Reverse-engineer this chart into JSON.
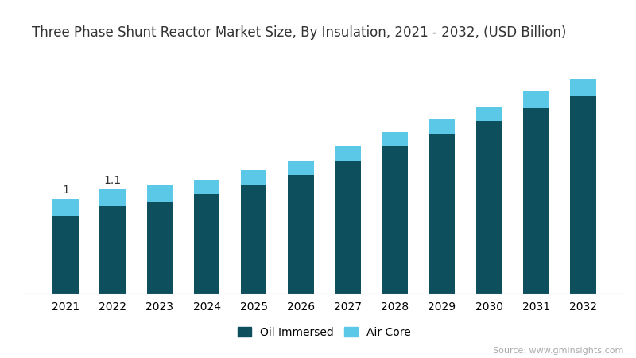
{
  "title": "Three Phase Shunt Reactor Market Size, By Insulation, 2021 - 2032, (USD Billion)",
  "years": [
    2021,
    2022,
    2023,
    2024,
    2025,
    2026,
    2027,
    2028,
    2029,
    2030,
    2031,
    2032
  ],
  "oil_immersed": [
    0.82,
    0.92,
    0.96,
    1.05,
    1.15,
    1.25,
    1.4,
    1.55,
    1.68,
    1.82,
    1.95,
    2.08
  ],
  "air_core": [
    0.18,
    0.18,
    0.19,
    0.15,
    0.15,
    0.15,
    0.15,
    0.15,
    0.15,
    0.15,
    0.18,
    0.18
  ],
  "oil_color": "#0d4f5c",
  "air_color": "#5bc8e8",
  "bg_color": "#ffffff",
  "title_color": "#333333",
  "annotations": [
    {
      "year_idx": 0,
      "text": "1",
      "total": 1.0
    },
    {
      "year_idx": 1,
      "text": "1.1",
      "total": 1.1
    }
  ],
  "legend_oil": "Oil Immersed",
  "legend_air": "Air Core",
  "source_text": "Source: www.gminsights.com",
  "title_fontsize": 12,
  "tick_fontsize": 10,
  "legend_fontsize": 10,
  "ylim": [
    0,
    2.6
  ],
  "bar_width": 0.55
}
